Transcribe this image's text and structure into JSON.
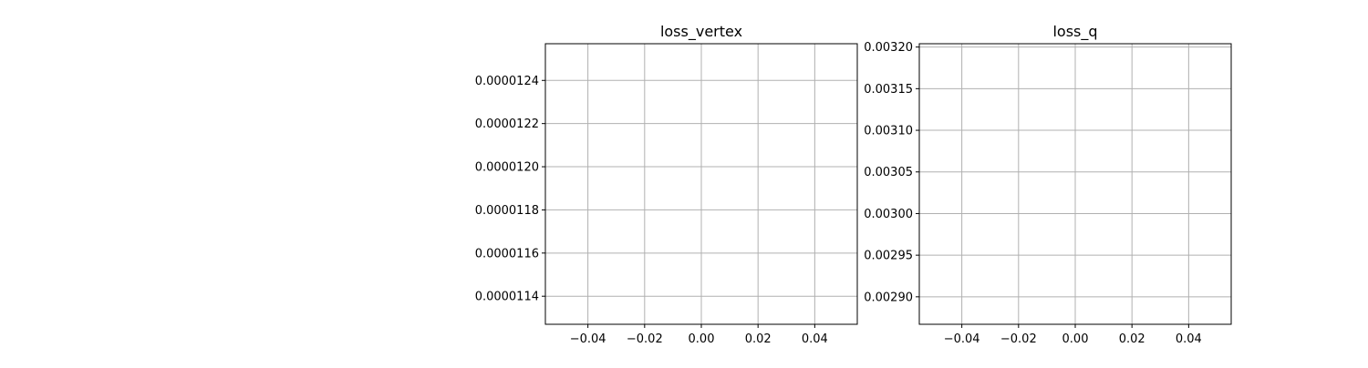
{
  "chart_data": [
    {
      "type": "line",
      "title": "loss_vertex",
      "xlabel": "",
      "ylabel": "",
      "grid": true,
      "series": [],
      "xlim": [
        -0.055,
        0.055
      ],
      "ylim": [
        1.127e-05,
        1.257e-05
      ],
      "x_ticks": [
        -0.04,
        -0.02,
        0.0,
        0.02,
        0.04
      ],
      "x_tick_labels": [
        "−0.04",
        "−0.02",
        "0.00",
        "0.02",
        "0.04"
      ],
      "y_ticks": [
        1.14e-05,
        1.16e-05,
        1.18e-05,
        1.2e-05,
        1.22e-05,
        1.24e-05
      ],
      "y_tick_labels": [
        "0.0000114",
        "0.0000116",
        "0.0000118",
        "0.0000120",
        "0.0000122",
        "0.0000124"
      ]
    },
    {
      "type": "line",
      "title": "loss_q",
      "xlabel": "",
      "ylabel": "",
      "grid": true,
      "series": [],
      "xlim": [
        -0.055,
        0.055
      ],
      "ylim": [
        0.002867,
        0.003204
      ],
      "x_ticks": [
        -0.04,
        -0.02,
        0.0,
        0.02,
        0.04
      ],
      "x_tick_labels": [
        "−0.04",
        "−0.02",
        "0.00",
        "0.02",
        "0.04"
      ],
      "y_ticks": [
        0.0029,
        0.00295,
        0.003,
        0.00305,
        0.0031,
        0.00315,
        0.0032
      ],
      "y_tick_labels": [
        "0.00290",
        "0.00295",
        "0.00300",
        "0.00305",
        "0.00310",
        "0.00315",
        "0.00320"
      ]
    }
  ]
}
